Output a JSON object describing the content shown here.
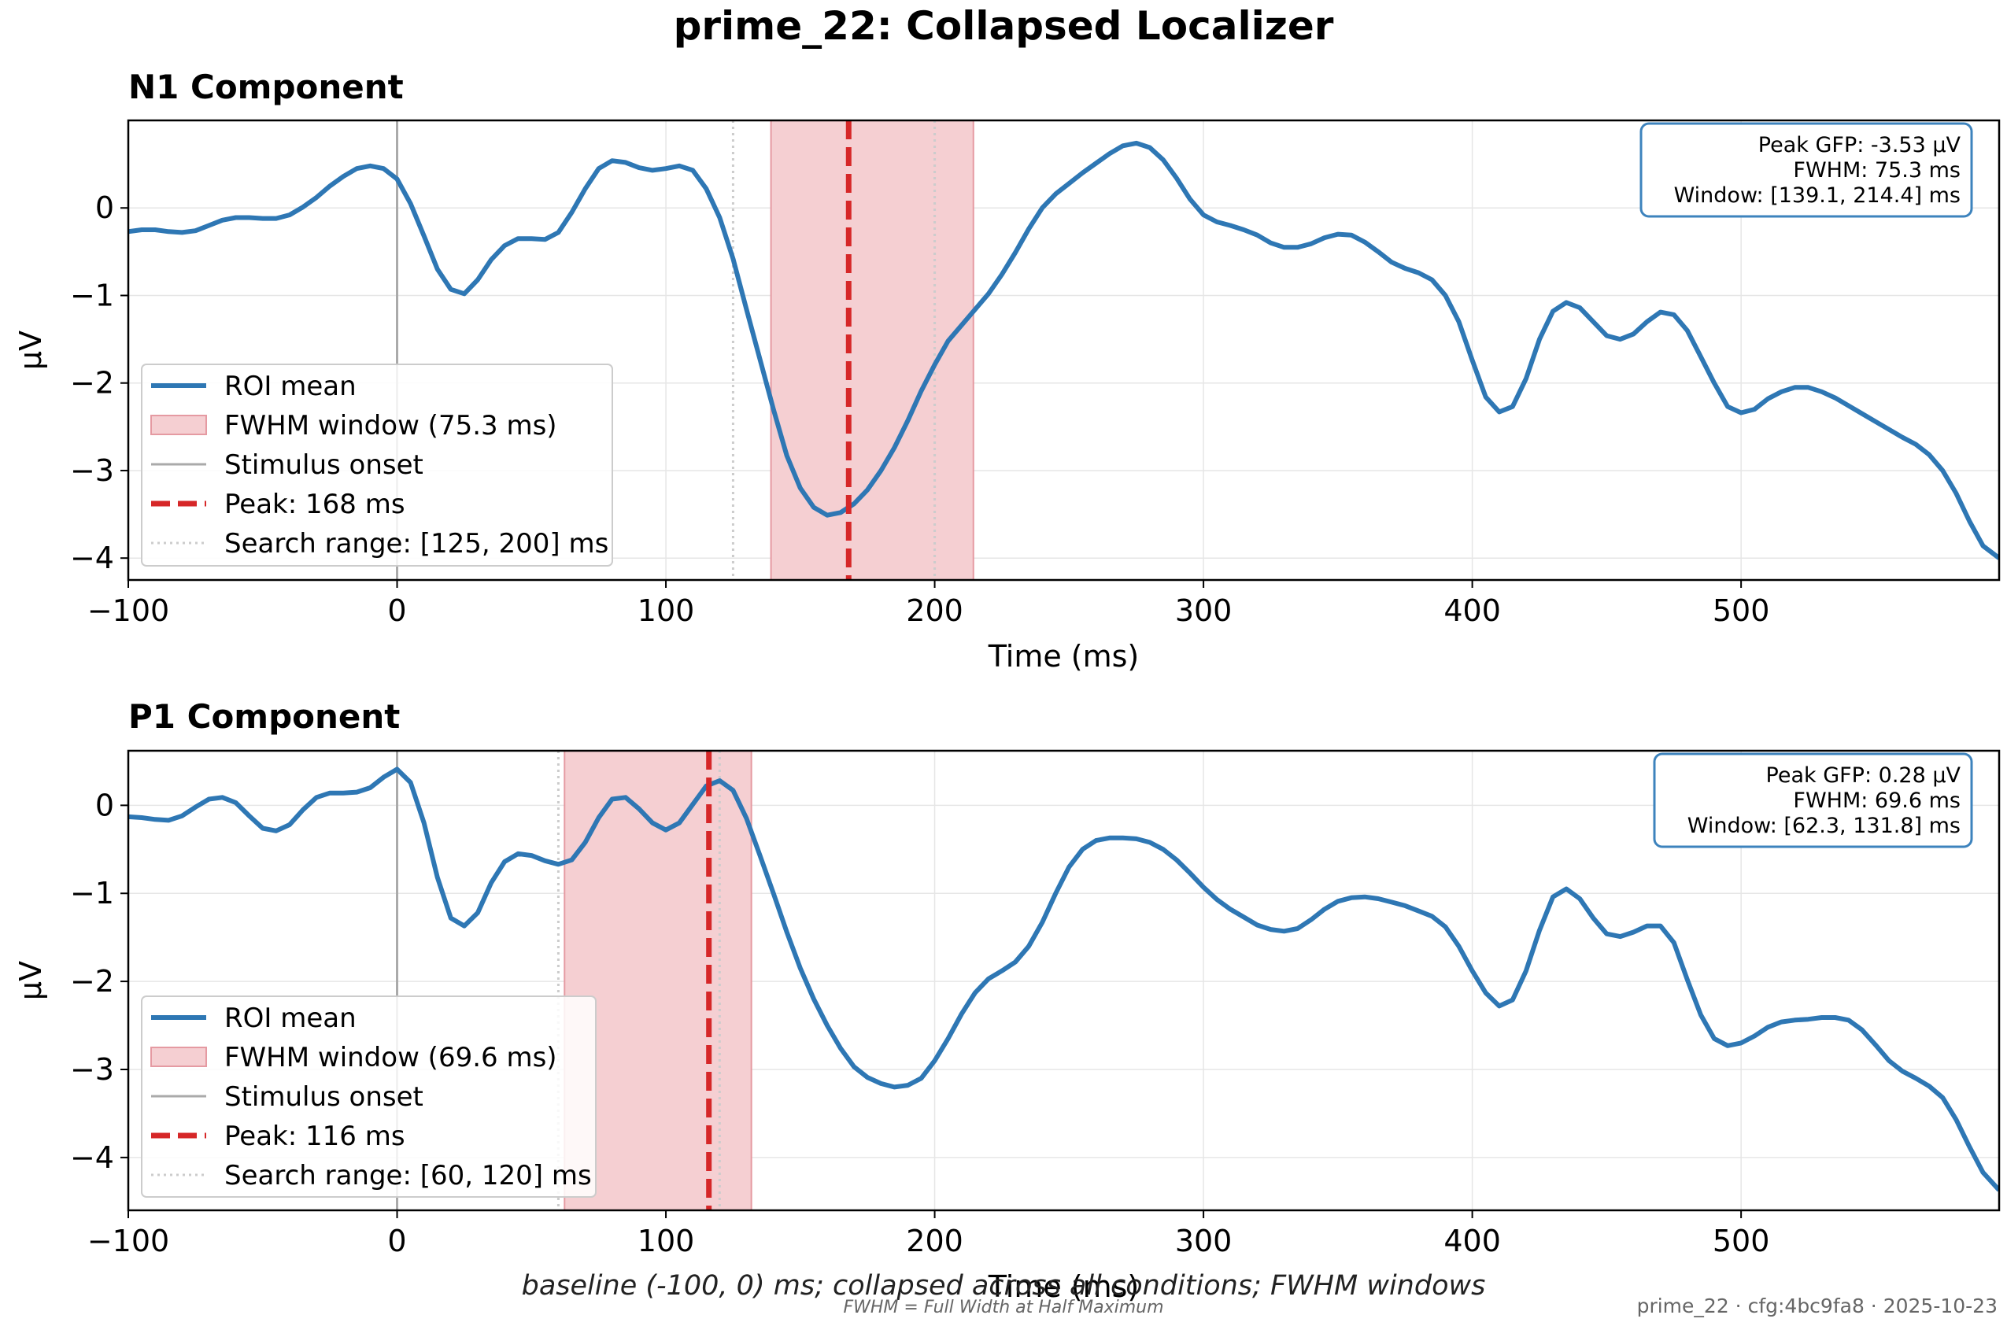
{
  "figure": {
    "title": "prime_22: Collapsed Localizer",
    "footer_caption": "baseline (-100, 0) ms; collapsed across all conditions; FWHM windows",
    "footer_note": "FWHM = Full Width at Half Maximum",
    "footer_meta": "prime_22 · cfg:4bc9fa8 · 2025-10-23"
  },
  "colors": {
    "roi_line": "#2e77b4",
    "fwhm_fill": "#f5cfd2",
    "fwhm_edge": "#e59aa2",
    "peak_line": "#d62728",
    "onset_line": "#aaaaaa",
    "search_line": "#cccccc",
    "grid": "#e6e6e6",
    "box_edge": "#3d83bd"
  },
  "chart_data": [
    {
      "type": "line",
      "title": "N1 Component",
      "xlabel": "Time (ms)",
      "ylabel": "µV",
      "xlim": [
        -100,
        596
      ],
      "ylim": [
        -4.25,
        1.0
      ],
      "xticks": [
        -100,
        0,
        100,
        200,
        300,
        400,
        500
      ],
      "yticks": [
        0,
        -1,
        -2,
        -3,
        -4
      ],
      "ytick_labels": [
        "0",
        "−1",
        "−2",
        "−3",
        "−4"
      ],
      "xtick_labels": [
        "−100",
        "0",
        "100",
        "200",
        "300",
        "400",
        "500"
      ],
      "grid": true,
      "legend_position": "lower-left",
      "legend": [
        "ROI mean",
        "FWHM window (75.3 ms)",
        "Stimulus onset",
        "Peak: 168 ms",
        "Search range: [125, 200] ms"
      ],
      "stimulus_onset": 0,
      "peak": 168,
      "search_range": [
        125,
        200
      ],
      "fwhm_window": [
        139.1,
        214.4
      ],
      "info_box": [
        "Peak GFP: -3.53 µV",
        "FWHM: 75.3 ms",
        "Window: [139.1, 214.4] ms"
      ],
      "series": [
        {
          "name": "ROI mean",
          "x": [
            -100,
            -95,
            -90,
            -85,
            -80,
            -75,
            -70,
            -65,
            -60,
            -55,
            -50,
            -45,
            -40,
            -35,
            -30,
            -25,
            -20,
            -15,
            -10,
            -5,
            0,
            5,
            10,
            15,
            20,
            25,
            30,
            35,
            40,
            45,
            50,
            55,
            60,
            65,
            70,
            75,
            80,
            85,
            90,
            95,
            100,
            105,
            110,
            115,
            120,
            125,
            130,
            135,
            140,
            145,
            150,
            155,
            160,
            165,
            170,
            175,
            180,
            185,
            190,
            195,
            200,
            205,
            210,
            215,
            220,
            225,
            230,
            235,
            240,
            245,
            250,
            255,
            260,
            265,
            270,
            275,
            280,
            285,
            290,
            295,
            300,
            305,
            310,
            315,
            320,
            325,
            330,
            335,
            340,
            345,
            350,
            355,
            360,
            365,
            370,
            375,
            380,
            385,
            390,
            395,
            400,
            405,
            410,
            415,
            420,
            425,
            430,
            435,
            440,
            445,
            450,
            455,
            460,
            465,
            470,
            475,
            480,
            485,
            490,
            495,
            500,
            505,
            510,
            515,
            520,
            525,
            530,
            535,
            540,
            545,
            550,
            555,
            560,
            565,
            570,
            575,
            580,
            585,
            590,
            596
          ],
          "y": [
            -0.27,
            -0.25,
            -0.25,
            -0.27,
            -0.28,
            -0.26,
            -0.2,
            -0.14,
            -0.11,
            -0.11,
            -0.12,
            -0.12,
            -0.08,
            0.01,
            0.12,
            0.25,
            0.36,
            0.45,
            0.48,
            0.45,
            0.33,
            0.05,
            -0.32,
            -0.7,
            -0.93,
            -0.98,
            -0.82,
            -0.59,
            -0.43,
            -0.35,
            -0.35,
            -0.36,
            -0.28,
            -0.05,
            0.22,
            0.45,
            0.54,
            0.52,
            0.46,
            0.43,
            0.45,
            0.48,
            0.43,
            0.22,
            -0.11,
            -0.58,
            -1.16,
            -1.73,
            -2.3,
            -2.83,
            -3.2,
            -3.42,
            -3.51,
            -3.48,
            -3.38,
            -3.22,
            -3.0,
            -2.74,
            -2.43,
            -2.09,
            -1.79,
            -1.52,
            -1.34,
            -1.16,
            -0.98,
            -0.76,
            -0.51,
            -0.24,
            0.0,
            0.16,
            0.28,
            0.4,
            0.51,
            0.62,
            0.71,
            0.74,
            0.69,
            0.55,
            0.34,
            0.1,
            -0.08,
            -0.16,
            -0.2,
            -0.25,
            -0.31,
            -0.4,
            -0.45,
            -0.45,
            -0.41,
            -0.34,
            -0.3,
            -0.31,
            -0.39,
            -0.5,
            -0.62,
            -0.69,
            -0.74,
            -0.82,
            -1.0,
            -1.3,
            -1.74,
            -2.16,
            -2.33,
            -2.27,
            -1.95,
            -1.5,
            -1.18,
            -1.08,
            -1.14,
            -1.3,
            -1.46,
            -1.5,
            -1.44,
            -1.3,
            -1.19,
            -1.22,
            -1.4,
            -1.7,
            -2.0,
            -2.27,
            -2.34,
            -2.3,
            -2.18,
            -2.1,
            -2.05,
            -2.05,
            -2.1,
            -2.17,
            -2.26,
            -2.35,
            -2.44,
            -2.53,
            -2.62,
            -2.7,
            -2.82,
            -3.0,
            -3.26,
            -3.58,
            -3.86,
            -4.0
          ]
        }
      ]
    },
    {
      "type": "line",
      "title": "P1 Component",
      "xlabel": "Time (ms)",
      "ylabel": "µV",
      "xlim": [
        -100,
        596
      ],
      "ylim": [
        -4.6,
        0.62
      ],
      "xticks": [
        -100,
        0,
        100,
        200,
        300,
        400,
        500
      ],
      "yticks": [
        0,
        -1,
        -2,
        -3,
        -4
      ],
      "ytick_labels": [
        "0",
        "−1",
        "−2",
        "−3",
        "−4"
      ],
      "xtick_labels": [
        "−100",
        "0",
        "100",
        "200",
        "300",
        "400",
        "500"
      ],
      "grid": true,
      "legend_position": "lower-left",
      "legend": [
        "ROI mean",
        "FWHM window (69.6 ms)",
        "Stimulus onset",
        "Peak: 116 ms",
        "Search range: [60, 120] ms"
      ],
      "stimulus_onset": 0,
      "peak": 116,
      "search_range": [
        60,
        120
      ],
      "fwhm_window": [
        62.3,
        131.8
      ],
      "info_box": [
        "Peak GFP: 0.28 µV",
        "FWHM: 69.6 ms",
        "Window: [62.3, 131.8] ms"
      ],
      "series": [
        {
          "name": "ROI mean",
          "x": [
            -100,
            -95,
            -90,
            -85,
            -80,
            -75,
            -70,
            -65,
            -60,
            -55,
            -50,
            -45,
            -40,
            -35,
            -30,
            -25,
            -20,
            -15,
            -10,
            -5,
            0,
            5,
            10,
            15,
            20,
            25,
            30,
            35,
            40,
            45,
            50,
            55,
            60,
            65,
            70,
            75,
            80,
            85,
            90,
            95,
            100,
            105,
            110,
            115,
            120,
            125,
            130,
            135,
            140,
            145,
            150,
            155,
            160,
            165,
            170,
            175,
            180,
            185,
            190,
            195,
            200,
            205,
            210,
            215,
            220,
            225,
            230,
            235,
            240,
            245,
            250,
            255,
            260,
            265,
            270,
            275,
            280,
            285,
            290,
            295,
            300,
            305,
            310,
            315,
            320,
            325,
            330,
            335,
            340,
            345,
            350,
            355,
            360,
            365,
            370,
            375,
            380,
            385,
            390,
            395,
            400,
            405,
            410,
            415,
            420,
            425,
            430,
            435,
            440,
            445,
            450,
            455,
            460,
            465,
            470,
            475,
            480,
            485,
            490,
            495,
            500,
            505,
            510,
            515,
            520,
            525,
            530,
            535,
            540,
            545,
            550,
            555,
            560,
            565,
            570,
            575,
            580,
            585,
            590,
            596
          ],
          "y": [
            -0.13,
            -0.14,
            -0.16,
            -0.17,
            -0.12,
            -0.02,
            0.07,
            0.09,
            0.03,
            -0.12,
            -0.26,
            -0.29,
            -0.22,
            -0.05,
            0.09,
            0.14,
            0.14,
            0.15,
            0.2,
            0.32,
            0.41,
            0.26,
            -0.2,
            -0.82,
            -1.28,
            -1.37,
            -1.22,
            -0.88,
            -0.64,
            -0.55,
            -0.57,
            -0.63,
            -0.67,
            -0.62,
            -0.42,
            -0.14,
            0.07,
            0.09,
            -0.04,
            -0.2,
            -0.28,
            -0.2,
            0.01,
            0.22,
            0.28,
            0.17,
            -0.15,
            -0.57,
            -1.0,
            -1.44,
            -1.85,
            -2.2,
            -2.5,
            -2.76,
            -2.97,
            -3.09,
            -3.16,
            -3.2,
            -3.18,
            -3.1,
            -2.9,
            -2.65,
            -2.37,
            -2.13,
            -1.97,
            -1.88,
            -1.78,
            -1.6,
            -1.33,
            -1.0,
            -0.7,
            -0.5,
            -0.4,
            -0.37,
            -0.37,
            -0.38,
            -0.42,
            -0.5,
            -0.62,
            -0.77,
            -0.93,
            -1.07,
            -1.18,
            -1.27,
            -1.36,
            -1.41,
            -1.43,
            -1.4,
            -1.3,
            -1.18,
            -1.09,
            -1.05,
            -1.04,
            -1.06,
            -1.1,
            -1.14,
            -1.2,
            -1.26,
            -1.38,
            -1.6,
            -1.88,
            -2.13,
            -2.28,
            -2.21,
            -1.88,
            -1.42,
            -1.04,
            -0.95,
            -1.06,
            -1.28,
            -1.46,
            -1.49,
            -1.44,
            -1.37,
            -1.37,
            -1.56,
            -1.98,
            -2.38,
            -2.65,
            -2.73,
            -2.7,
            -2.62,
            -2.52,
            -2.46,
            -2.44,
            -2.43,
            -2.41,
            -2.41,
            -2.44,
            -2.55,
            -2.72,
            -2.9,
            -3.02,
            -3.1,
            -3.19,
            -3.32,
            -3.57,
            -3.88,
            -4.17,
            -4.37
          ]
        }
      ]
    }
  ]
}
